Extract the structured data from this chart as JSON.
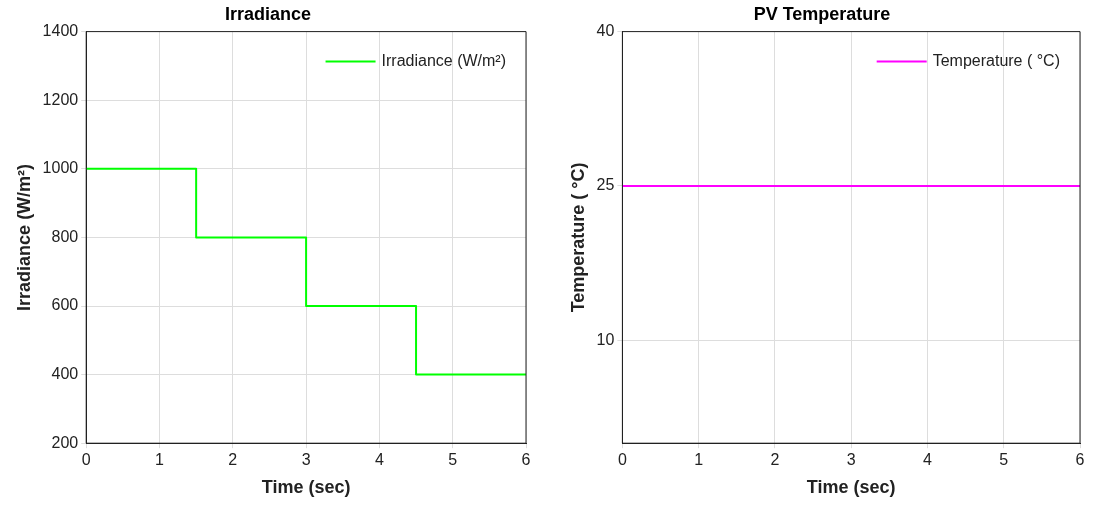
{
  "chart_data": [
    {
      "type": "step",
      "title": "Irradiance",
      "xlabel": "Time (sec)",
      "ylabel": "Irradiance (W/m²)",
      "xlim": [
        0,
        6
      ],
      "xticks": [
        0,
        1,
        2,
        3,
        4,
        5,
        6
      ],
      "ylim": [
        200,
        1400
      ],
      "yticks": [
        200,
        400,
        600,
        800,
        1000,
        1200,
        1400
      ],
      "grid": true,
      "legend": "top right",
      "series": [
        {
          "name": "Irradiance (W/m²)",
          "color": "#00ff00",
          "x": [
            0,
            1.5,
            3,
            4.5,
            6
          ],
          "values": [
            1000,
            800,
            600,
            400,
            400
          ]
        }
      ]
    },
    {
      "type": "line",
      "title": "PV Temperature",
      "xlabel": "Time (sec)",
      "ylabel": "Temperature ( °C)",
      "xlim": [
        0,
        6
      ],
      "xticks": [
        0,
        1,
        2,
        3,
        4,
        5,
        6
      ],
      "ylim": [
        0,
        40
      ],
      "yticks": [
        10,
        25,
        40
      ],
      "grid": true,
      "legend": "top right",
      "series": [
        {
          "name": "Temperature ( °C)",
          "color": "#ff00ff",
          "x": [
            0,
            6
          ],
          "values": [
            25,
            25
          ]
        }
      ]
    }
  ]
}
